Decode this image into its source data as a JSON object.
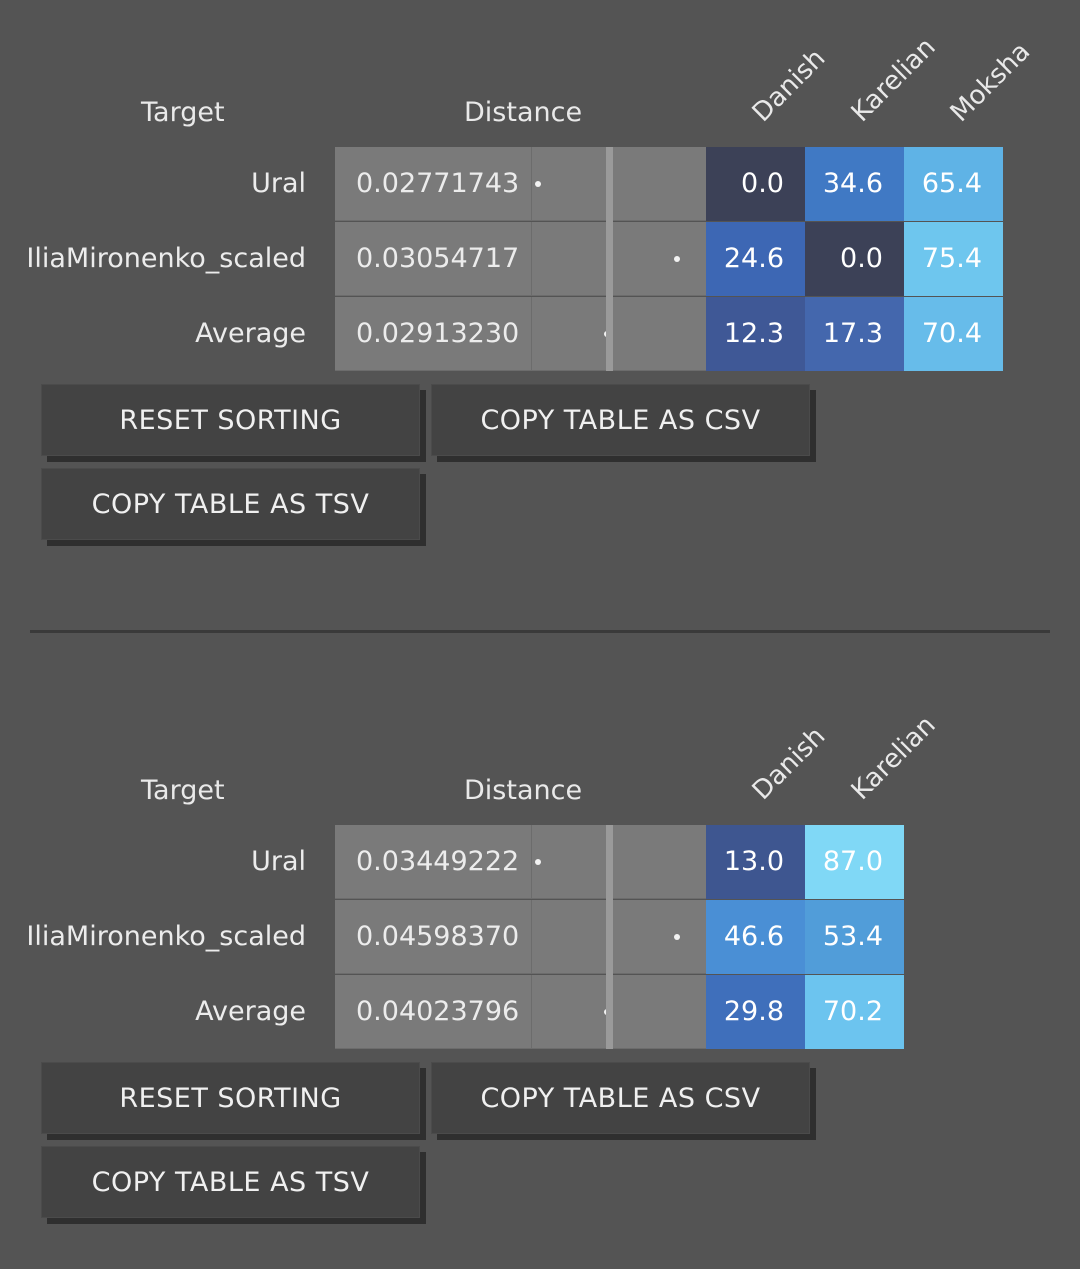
{
  "tables": [
    {
      "headers": {
        "target": "Target",
        "distance": "Distance",
        "columns": [
          "Danish",
          "Karelian",
          "Moksha"
        ]
      },
      "rows": [
        {
          "label": "Ural",
          "distance": "0.02771743",
          "distance_value": 0.02771743,
          "values": [
            "0.0",
            "34.6",
            "65.4"
          ],
          "colors": [
            "#3c4157",
            "#4079c4",
            "#5fb3e6"
          ]
        },
        {
          "label": "IliaMironenko_scaled",
          "distance": "0.03054717",
          "distance_value": 0.03054717,
          "values": [
            "24.6",
            "0.0",
            "75.4"
          ],
          "colors": [
            "#3d67b4",
            "#3c4157",
            "#6ec6ee"
          ]
        },
        {
          "label": "Average",
          "distance": "0.02913230",
          "distance_value": 0.0291323,
          "values": [
            "12.3",
            "17.3",
            "70.4"
          ],
          "colors": [
            "#3f5896",
            "#4467ad",
            "#67bcea"
          ]
        }
      ],
      "buttons": {
        "reset": "RESET SORTING",
        "csv": "COPY TABLE AS CSV",
        "tsv": "COPY TABLE AS TSV"
      }
    },
    {
      "headers": {
        "target": "Target",
        "distance": "Distance",
        "columns": [
          "Danish",
          "Karelian"
        ]
      },
      "rows": [
        {
          "label": "Ural",
          "distance": "0.03449222",
          "distance_value": 0.03449222,
          "values": [
            "13.0",
            "87.0"
          ],
          "colors": [
            "#3e5690",
            "#80d8f6"
          ]
        },
        {
          "label": "IliaMironenko_scaled",
          "distance": "0.04598370",
          "distance_value": 0.0459837,
          "values": [
            "46.6",
            "53.4"
          ],
          "colors": [
            "#4a8fd5",
            "#519dd9"
          ]
        },
        {
          "label": "Average",
          "distance": "0.04023796",
          "distance_value": 0.04023796,
          "values": [
            "29.8",
            "70.2"
          ],
          "colors": [
            "#3f6fbb",
            "#6cc4ef"
          ]
        }
      ],
      "buttons": {
        "reset": "RESET SORTING",
        "csv": "COPY TABLE AS CSV",
        "tsv": "COPY TABLE AS TSV"
      }
    }
  ]
}
